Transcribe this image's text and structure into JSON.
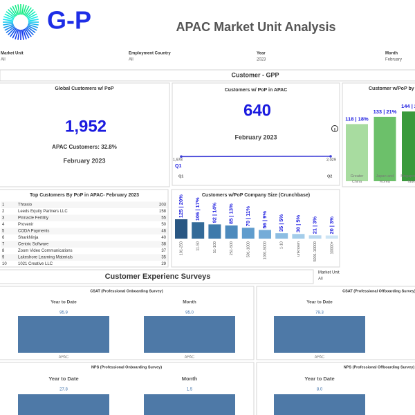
{
  "header": {
    "logo": "G-P",
    "title": "APAC Market Unit Analysis"
  },
  "filters": [
    {
      "label": "Market Unit",
      "value": "All"
    },
    {
      "label": "Employment Country",
      "value": "All"
    },
    {
      "label": "Year",
      "value": "2023"
    },
    {
      "label": "Month",
      "value": "February"
    }
  ],
  "customer_section": {
    "title": "Customer - GPP"
  },
  "global_pop": {
    "title": "Global Customers w/ PoP",
    "value": "1,952",
    "subtitle": "APAC Customers: 32.8%",
    "period": "February 2023"
  },
  "apac_pop": {
    "title": "Customers w/ PoP in APAC",
    "value": "640",
    "period": "February 2023",
    "chart": {
      "type": "line",
      "x": [
        "Q1",
        "Q2"
      ],
      "values": [
        1978,
        2029
      ],
      "value_labels": [
        "1,978",
        "2,029"
      ],
      "highlight": "Q1",
      "color": "#3b3bd6"
    }
  },
  "region_chart": {
    "type": "bar",
    "title": "Customer w/PoP by",
    "categories": [
      "Greater China",
      "Japan and Korea",
      "Singapore and Taiwan"
    ],
    "values": [
      118,
      133,
      144
    ],
    "value_labels": [
      "118 | 18%",
      "133 | 21%",
      "144 | 22%"
    ],
    "colors": [
      "#a8dca0",
      "#6cc06a",
      "#3a9a3c"
    ]
  },
  "top_customers": {
    "title": "Top Customers By PoP in APAC- February 2023",
    "rows": [
      [
        1,
        "Thrasio",
        203
      ],
      [
        2,
        "Leeds Equity Partners LLC",
        158
      ],
      [
        3,
        "Pinnacle Fertility",
        55
      ],
      [
        4,
        "Provenir",
        50
      ],
      [
        5,
        "CODA Payments",
        46
      ],
      [
        6,
        "SharkNinja",
        40
      ],
      [
        7,
        "Centric Software",
        38
      ],
      [
        8,
        "Zoom Video Communications",
        37
      ],
      [
        9,
        "Lakeshore Learning Materials",
        35
      ],
      [
        10,
        "1021 Creative LLC",
        29
      ]
    ]
  },
  "company_size_chart": {
    "type": "bar",
    "title": "Customers w/PoP Company Size (Crunchbase)",
    "categories": [
      "101-250",
      "11-50",
      "51-100",
      "251-500",
      "501-1000",
      "1001-5000",
      "1-10",
      "unknown",
      "5001-10000",
      "10000+"
    ],
    "values": [
      125,
      106,
      92,
      85,
      70,
      56,
      35,
      30,
      21,
      20
    ],
    "value_labels": [
      "125 | 20%",
      "106 | 17%",
      "92 | 14%",
      "85 | 13%",
      "70 | 11%",
      "56 | 9%",
      "35 | 5%",
      "30 | 5%",
      "21 | 3%",
      "20 | 3%"
    ],
    "colors": [
      "#2a5783",
      "#336a98",
      "#3e7aab",
      "#4d8abd",
      "#5f9ccd",
      "#75acd8",
      "#8dbde2",
      "#a4cdea",
      "#bad9f0",
      "#cde5f5"
    ]
  },
  "survey_section": {
    "title": "Customer Experienc Surveys",
    "filter_label": "Market Unit",
    "filter_value": "All"
  },
  "surveys": [
    {
      "title": "CSAT (Professional Onboarding Survey)",
      "panels": [
        {
          "label": "Year to Date",
          "categories": [
            "APAC"
          ],
          "values": [
            95.9
          ],
          "value_labels": [
            "95.9"
          ]
        },
        {
          "label": "Month",
          "categories": [
            "APAC"
          ],
          "values": [
            95.0
          ],
          "value_labels": [
            "95.0"
          ]
        }
      ]
    },
    {
      "title": "CSAT (Professional Offboarding Survey)",
      "panels": [
        {
          "label": "Year to Date",
          "categories": [
            "APAC"
          ],
          "values": [
            79.3
          ],
          "value_labels": [
            "79.3"
          ]
        }
      ]
    },
    {
      "title": "NPS (Professional Onboarding Survey)",
      "panels": [
        {
          "label": "Year to Date",
          "values": [
            27.8
          ],
          "value_labels": [
            "27.8"
          ]
        },
        {
          "label": "Month",
          "values": [
            1.5
          ],
          "value_labels": [
            "1.5"
          ]
        }
      ]
    },
    {
      "title": "NPS (Professional Offboarding Survey)",
      "panels": [
        {
          "label": "Year to Date",
          "values": [
            8.0
          ],
          "value_labels": [
            "8.0"
          ]
        }
      ]
    }
  ]
}
